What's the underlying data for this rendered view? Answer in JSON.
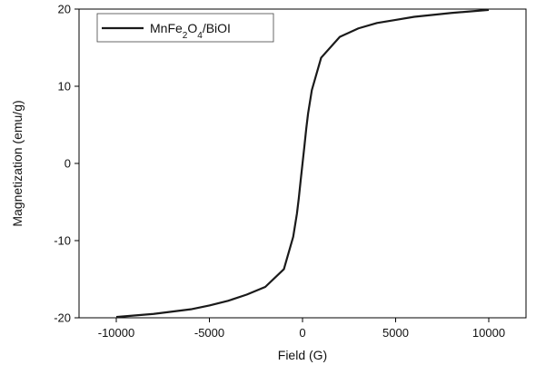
{
  "chart_data": {
    "type": "line",
    "title": "",
    "xlabel": "Field (G)",
    "ylabel": "Magnetization (emu/g)",
    "xlim": [
      -12000,
      12000
    ],
    "ylim": [
      -20,
      20
    ],
    "x_ticks": [
      -10000,
      -5000,
      0,
      5000,
      10000
    ],
    "x_tick_labels": [
      "-10000",
      "-5000",
      "0",
      "5000",
      "10000"
    ],
    "y_ticks": [
      -20,
      -10,
      0,
      10,
      20
    ],
    "y_tick_labels": [
      "-20",
      "-10",
      "0",
      "10",
      "20"
    ],
    "grid": false,
    "legend_position": "top-left",
    "series": [
      {
        "name": "MnFe2O4/BiOI",
        "legend": {
          "base": "MnFe",
          "sub1": "2",
          "mid": "O",
          "sub2": "4",
          "tail": "/BiOI"
        },
        "color": "#1a1a1a",
        "x": [
          -10000,
          -8000,
          -6000,
          -5000,
          -4000,
          -3000,
          -2000,
          -1000,
          -500,
          -300,
          -200,
          -100,
          0,
          100,
          200,
          300,
          500,
          1000,
          2000,
          3000,
          4000,
          5000,
          6000,
          8000,
          10000
        ],
        "y": [
          -19.9,
          -19.5,
          -18.9,
          -18.4,
          -17.8,
          -17.0,
          -16.0,
          -13.7,
          -9.5,
          -6.5,
          -4.5,
          -2.2,
          0,
          2.2,
          4.5,
          6.5,
          9.5,
          13.7,
          16.4,
          17.5,
          18.2,
          18.6,
          19.0,
          19.5,
          19.9
        ]
      }
    ]
  }
}
